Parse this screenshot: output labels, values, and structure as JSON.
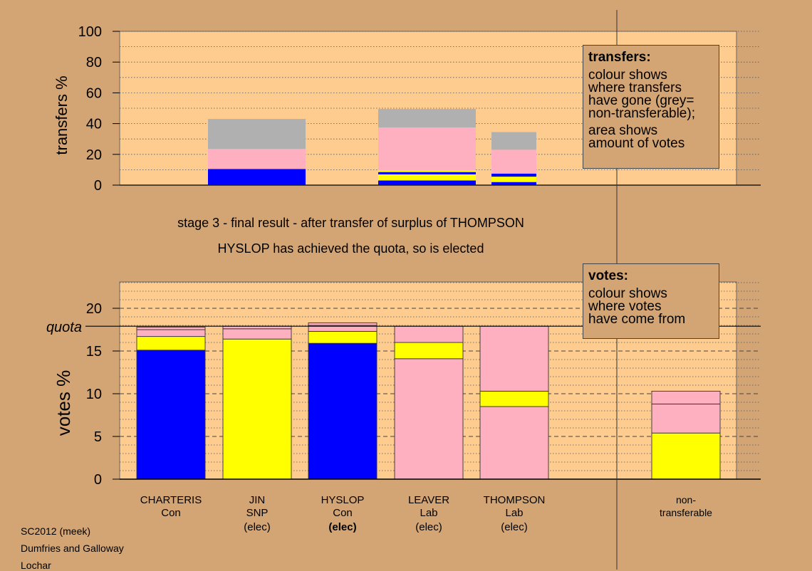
{
  "colors": {
    "background": "#d4a574",
    "plot_bg": "#ffcc8f",
    "Con": "#0000ff",
    "SNP": "#ffff00",
    "Lab": "#ffb0c0",
    "nontransferable": "#b0b0b0"
  },
  "captions": {
    "stage": "stage 3 - final result - after transfer of surplus of THOMPSON",
    "elected": "HYSLOP has achieved the quota, so is elected"
  },
  "footer": {
    "line1": "SC2012 (meek)",
    "line2": "Dumfries and Galloway",
    "line3": "Lochar"
  },
  "legend_transfers": {
    "title": "transfers:",
    "body": [
      "colour shows",
      "where transfers",
      "have gone (grey=",
      "non-transferable);"
    ],
    "body2": [
      "area shows",
      "amount of votes"
    ]
  },
  "legend_votes": {
    "title": "votes:",
    "body": [
      "colour shows",
      "where votes",
      "have come from"
    ]
  },
  "chart_data": [
    {
      "type": "bar",
      "ylabel": "transfers %",
      "ylim": [
        0,
        100
      ],
      "yticks": [
        0,
        20,
        40,
        60,
        80,
        100
      ],
      "grid": true,
      "segment_order": [
        "Con",
        "SNP",
        "Lab",
        "nontransferable"
      ],
      "bars": [
        {
          "candidate": "CHARTERIS",
          "segments": []
        },
        {
          "candidate": "JIN",
          "segments": [
            {
              "party": "Con",
              "from": 0,
              "to": 10.5
            },
            {
              "party": "Lab",
              "from": 10.5,
              "to": 23.5
            },
            {
              "party": "nontransferable",
              "from": 23.5,
              "to": 43
            }
          ]
        },
        {
          "candidate": "HYSLOP",
          "segments": []
        },
        {
          "candidate": "LEAVER",
          "segments": [
            {
              "party": "Con",
              "from": 0,
              "to": 3
            },
            {
              "party": "SNP",
              "from": 3,
              "to": 7
            },
            {
              "party": "Con",
              "from": 7,
              "to": 8.5
            },
            {
              "party": "SNP",
              "from": 8.5,
              "to": 9.5
            },
            {
              "party": "Lab",
              "from": 9.5,
              "to": 37.5
            },
            {
              "party": "nontransferable",
              "from": 37.5,
              "to": 49.5
            }
          ]
        },
        {
          "candidate": "THOMPSON",
          "segments": [
            {
              "party": "Con",
              "from": 0,
              "to": 2
            },
            {
              "party": "SNP",
              "from": 2,
              "to": 5.5
            },
            {
              "party": "Con",
              "from": 5.5,
              "to": 7.5
            },
            {
              "party": "Lab",
              "from": 7.5,
              "to": 23
            },
            {
              "party": "nontransferable",
              "from": 23,
              "to": 34.5
            }
          ]
        }
      ]
    },
    {
      "type": "bar",
      "ylabel": "votes %",
      "ylim": [
        0,
        20
      ],
      "yticks": [
        0,
        5,
        10,
        15,
        20
      ],
      "quota": 17.9,
      "quota_label": "quota",
      "grid": true,
      "categories": [
        {
          "name": "CHARTERIS",
          "party": "Con",
          "status": ""
        },
        {
          "name": "JIN",
          "party": "SNP",
          "status": "(elec)"
        },
        {
          "name": "HYSLOP",
          "party": "Con",
          "status": "(elec)"
        },
        {
          "name": "LEAVER",
          "party": "Lab",
          "status": "(elec)"
        },
        {
          "name": "THOMPSON",
          "party": "Lab",
          "status": "(elec)"
        },
        {
          "name": "non-",
          "party": "transferable",
          "status": ""
        }
      ],
      "bars": [
        {
          "candidate": "CHARTERIS",
          "segments": [
            {
              "party": "Con",
              "from": 0,
              "to": 15.1
            },
            {
              "party": "SNP",
              "from": 15.1,
              "to": 16.7
            },
            {
              "party": "Lab",
              "from": 16.7,
              "to": 17.5
            },
            {
              "party": "Lab",
              "from": 17.5,
              "to": 17.8
            }
          ]
        },
        {
          "candidate": "JIN",
          "segments": [
            {
              "party": "SNP",
              "from": 0,
              "to": 16.4
            },
            {
              "party": "Lab",
              "from": 16.4,
              "to": 17.6
            },
            {
              "party": "Lab",
              "from": 17.6,
              "to": 17.9
            }
          ]
        },
        {
          "candidate": "HYSLOP",
          "segments": [
            {
              "party": "Con",
              "from": 0,
              "to": 15.9
            },
            {
              "party": "SNP",
              "from": 15.9,
              "to": 17.3
            },
            {
              "party": "Lab",
              "from": 17.3,
              "to": 18.0
            },
            {
              "party": "Lab",
              "from": 18.0,
              "to": 18.3
            }
          ]
        },
        {
          "candidate": "LEAVER",
          "segments": [
            {
              "party": "Lab",
              "from": 0,
              "to": 14.1
            },
            {
              "party": "SNP",
              "from": 14.1,
              "to": 16.0
            },
            {
              "party": "Lab",
              "from": 16.0,
              "to": 17.9
            }
          ]
        },
        {
          "candidate": "THOMPSON",
          "segments": [
            {
              "party": "Lab",
              "from": 0,
              "to": 8.5
            },
            {
              "party": "SNP",
              "from": 8.5,
              "to": 10.3
            },
            {
              "party": "Lab",
              "from": 10.3,
              "to": 17.9
            }
          ]
        },
        {
          "candidate": "non-transferable",
          "segments": [
            {
              "party": "SNP",
              "from": 0,
              "to": 5.4
            },
            {
              "party": "Lab",
              "from": 5.4,
              "to": 8.8
            },
            {
              "party": "Lab",
              "from": 8.8,
              "to": 10.3
            }
          ]
        }
      ]
    }
  ]
}
